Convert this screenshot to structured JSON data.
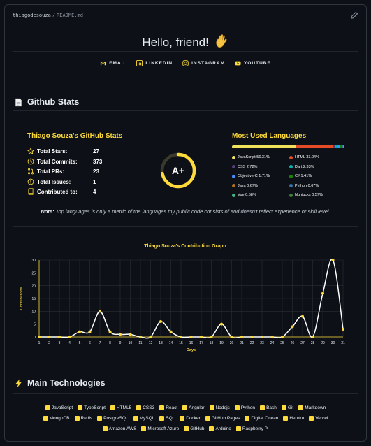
{
  "header": {
    "user": "thiagodesouza",
    "separator": "/",
    "file": "README.md"
  },
  "hello": {
    "text": "Hello, friend!"
  },
  "links": [
    {
      "label": "EMAIL",
      "icon": "gmail-icon"
    },
    {
      "label": "LINKEDIN",
      "icon": "linkedin-icon"
    },
    {
      "label": "INSTAGRAM",
      "icon": "instagram-icon"
    },
    {
      "label": "YOUTUBE",
      "icon": "youtube-icon"
    }
  ],
  "sections": {
    "stats_heading": "Github Stats",
    "tech_heading": "Main Technologies"
  },
  "stats": {
    "title": "Thiago Souza's GitHub Stats",
    "rows": [
      {
        "label": "Total Stars:",
        "value": "27",
        "icon": "star-icon"
      },
      {
        "label": "Total Commits:",
        "value": "373",
        "icon": "clock-icon"
      },
      {
        "label": "Total PRs:",
        "value": "23",
        "icon": "pull-request-icon"
      },
      {
        "label": "Total Issues:",
        "value": "1",
        "icon": "issue-icon"
      },
      {
        "label": "Contributed to:",
        "value": "4",
        "icon": "repo-icon"
      }
    ],
    "rank": "A+",
    "rank_progress": 0.72
  },
  "languages": {
    "title": "Most Used Languages",
    "items": [
      {
        "name": "JavaScript 56.31%",
        "pct": 56.31,
        "color": "#f1e05a"
      },
      {
        "name": "HTML 33.04%",
        "pct": 33.04,
        "color": "#e34c26"
      },
      {
        "name": "CSS 2.72%",
        "pct": 2.72,
        "color": "#563d7c"
      },
      {
        "name": "Dart 2.33%",
        "pct": 2.33,
        "color": "#00b4ab"
      },
      {
        "name": "Objective-C 1.71%",
        "pct": 1.71,
        "color": "#438eff"
      },
      {
        "name": "C# 1.41%",
        "pct": 1.41,
        "color": "#178600"
      },
      {
        "name": "Java 0.67%",
        "pct": 0.67,
        "color": "#b07219"
      },
      {
        "name": "Python 0.67%",
        "pct": 0.67,
        "color": "#3572a5"
      },
      {
        "name": "Vue 0.58%",
        "pct": 0.58,
        "color": "#41b883"
      },
      {
        "name": "Nunjucks 0.57%",
        "pct": 0.57,
        "color": "#3d8137"
      }
    ]
  },
  "note": {
    "bold": "Note:",
    "text": " Top languages is only a metric of the languages my public code consists of and doesn't reflect experience or skill level."
  },
  "chart_data": {
    "type": "line",
    "title": "Thiago Souza's Contribution Graph",
    "xlabel": "Days",
    "ylabel": "Contributions",
    "x": [
      1,
      2,
      3,
      4,
      5,
      6,
      7,
      8,
      9,
      10,
      11,
      12,
      13,
      14,
      15,
      16,
      17,
      18,
      19,
      20,
      21,
      22,
      23,
      24,
      25,
      26,
      27,
      28,
      29,
      30,
      31
    ],
    "values": [
      0,
      0,
      0,
      0,
      2,
      2,
      10,
      2,
      1,
      1,
      0,
      0,
      6,
      2,
      0,
      0,
      0,
      0,
      5,
      0,
      0,
      0,
      0,
      0,
      0,
      4,
      8,
      0,
      17,
      30,
      3
    ],
    "ylim": [
      0,
      30
    ],
    "yticks": [
      0,
      5,
      10,
      15,
      20,
      25,
      30
    ],
    "grid": true,
    "colors": {
      "line": "#ffffff",
      "point": "#fddb3a",
      "title": "#fddb3a",
      "axis": "#fddb3a"
    }
  },
  "technologies": [
    [
      "JavaScript",
      "TypeScript",
      "HTML5",
      "CSS3",
      "React",
      "Angular",
      "Nodejs",
      "Python",
      "Bash",
      "Git",
      "Markdown"
    ],
    [
      "MongoDB",
      "Redis",
      "PostgreSQL",
      "MySQL",
      "SQL",
      "Docker",
      "GitHub Pages",
      "Digital Ocean",
      "Heroku",
      "Vercel"
    ],
    [
      "Amazon AWS",
      "Microsoft Azure",
      "GitHub",
      "Arduino",
      "Raspberry Pi"
    ]
  ],
  "colors": {
    "accent": "#fddb3a",
    "background": "#0d1117",
    "border": "#30363d"
  }
}
